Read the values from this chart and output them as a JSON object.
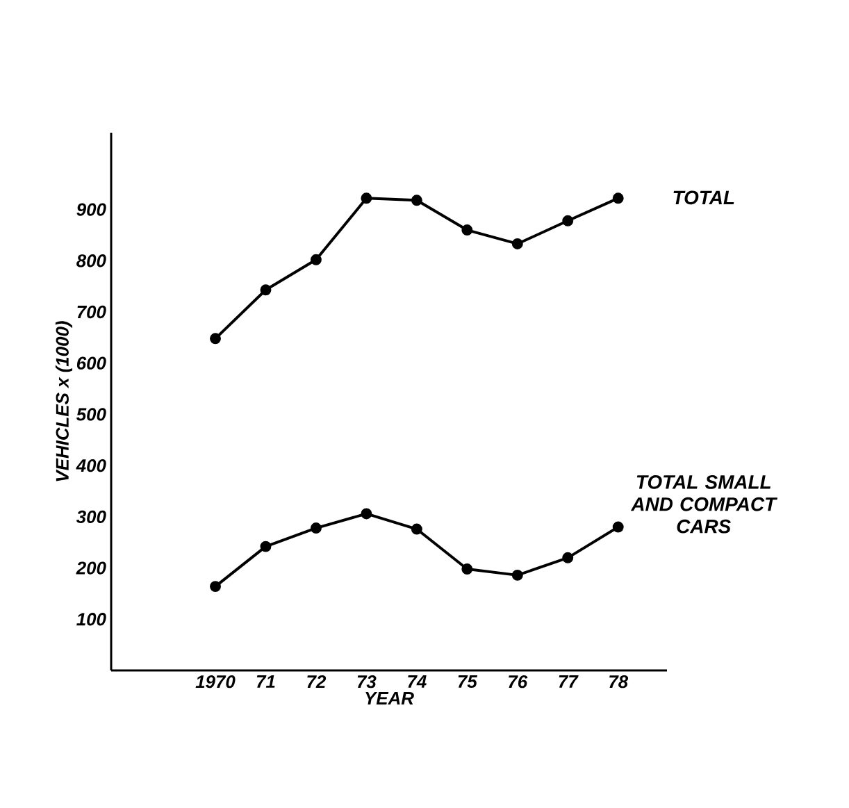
{
  "chart_data": {
    "type": "line",
    "xlabel": "YEAR",
    "ylabel": "VEHICLES x (1000)",
    "categories": [
      "1970",
      "71",
      "72",
      "73",
      "74",
      "75",
      "76",
      "77",
      "78"
    ],
    "series": [
      {
        "name": "TOTAL",
        "color": "#000000",
        "values": [
          648,
          743,
          802,
          922,
          918,
          860,
          833,
          878,
          922
        ]
      },
      {
        "name": "TOTAL SMALL AND COMPACT CARS",
        "color": "#000000",
        "values": [
          164,
          242,
          278,
          306,
          276,
          198,
          186,
          220,
          280
        ]
      }
    ],
    "ylim": [
      0,
      1050
    ],
    "yticks": [
      100,
      200,
      300,
      400,
      500,
      600,
      700,
      800,
      900
    ],
    "grid": false,
    "marker": "circle",
    "line_style": "solid"
  }
}
